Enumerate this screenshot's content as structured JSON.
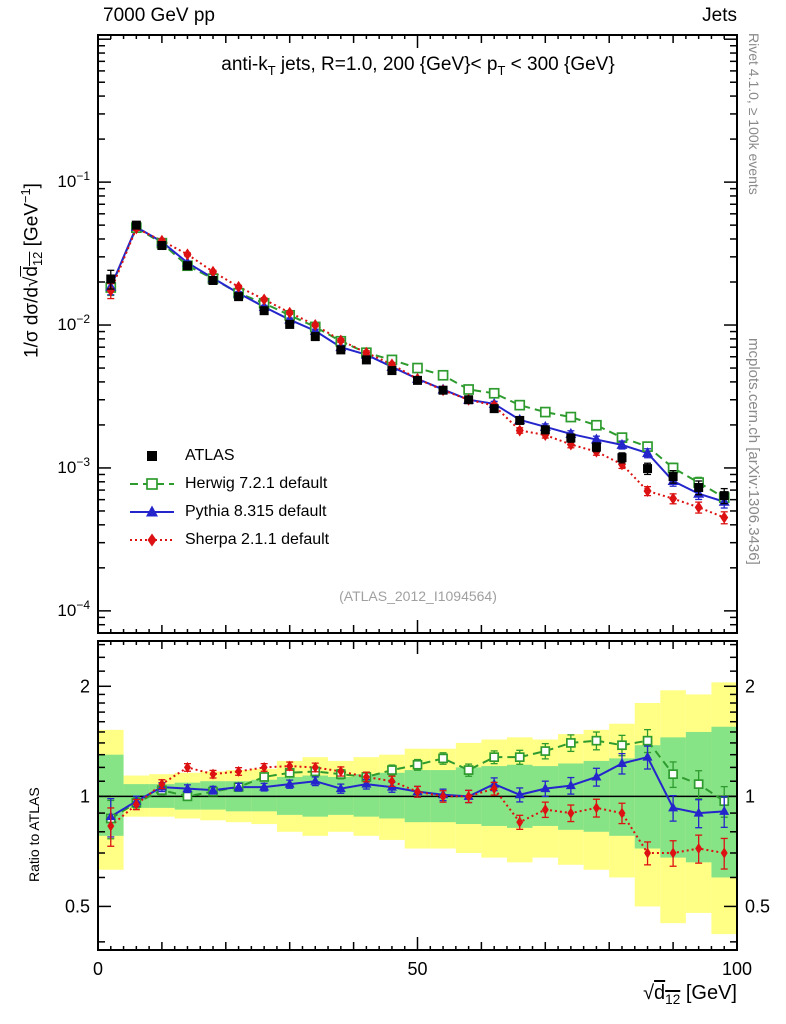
{
  "header": {
    "left": "7000 GeV pp",
    "right": "Jets"
  },
  "panel_title": {
    "p1": "anti-k",
    "s1": "T",
    "p2": " jets, R=1.0, 200 {GeV}< p",
    "s2": "T",
    "p3": " < 300 {GeV}"
  },
  "labels": {
    "y_pre": "1/σ dσ/d√",
    "y_d": "d",
    "y_sub": "12",
    "y_unit_pre": " [GeV",
    "y_sup": "−1",
    "y_unit_post": "]",
    "x_pre": "√",
    "x_d": "d",
    "x_sub": "12",
    "x_post": " [GeV]",
    "ratio_axis": "Ratio to ATLAS",
    "side_right_top": "Rivet 4.1.0, ≥ 100k events",
    "side_right_bottom": "mcplots.cern.ch [arXiv:1306.3436]",
    "watermark": "(ATLAS_2012_I1094564)"
  },
  "chart_data": {
    "type": "line",
    "title": "anti-k_T jets, R=1.0, 200 {GeV}< p_T < 300 {GeV}",
    "xlabel": "sqrt(d12) [GeV]",
    "ylabel": "1/sigma dsigma/d sqrt(d12) [GeV^-1]",
    "ratio_ylabel": "Ratio to ATLAS",
    "xlim": [
      0,
      100
    ],
    "top_ylim": [
      7e-05,
      1.07
    ],
    "ratio_ylim": [
      0.38,
      2.66
    ],
    "x_ticks": [
      0,
      50,
      100
    ],
    "y_tick_exponents": [
      -1,
      -2,
      -3,
      -4
    ],
    "ratio_ticks": [
      0.5,
      1,
      2
    ],
    "ratio_tick_labels": [
      "0.5",
      "1",
      "2"
    ],
    "bin_half_width": 2,
    "x": [
      2,
      6,
      10,
      14,
      18,
      22,
      26,
      30,
      34,
      38,
      42,
      46,
      50,
      54,
      58,
      62,
      66,
      70,
      74,
      78,
      82,
      86,
      90,
      94,
      98
    ],
    "err_frac": [
      0.15,
      0.04,
      0.035,
      0.03,
      0.03,
      0.03,
      0.03,
      0.032,
      0.034,
      0.036,
      0.038,
      0.04,
      0.042,
      0.045,
      0.048,
      0.05,
      0.055,
      0.06,
      0.065,
      0.07,
      0.08,
      0.09,
      0.1,
      0.11,
      0.12
    ],
    "series": [
      {
        "label": "ATLAS",
        "color": "#000000",
        "marker": "square-filled",
        "line": "none",
        "values": [
          0.021,
          0.05,
          0.036,
          0.026,
          0.0205,
          0.0158,
          0.0126,
          0.0101,
          0.0083,
          0.0067,
          0.0057,
          0.0048,
          0.0041,
          0.0035,
          0.003,
          0.0026,
          0.00215,
          0.00185,
          0.00162,
          0.0014,
          0.00118,
          0.00099,
          0.00087,
          0.00073,
          0.00064
        ]
      },
      {
        "label": "Herwig 7.2.1 default",
        "color": "#2e9b2e",
        "marker": "square-open",
        "line": "dashed",
        "values": [
          0.0183,
          0.048,
          0.0374,
          0.026,
          0.0211,
          0.0167,
          0.0142,
          0.0117,
          0.0097,
          0.0077,
          0.0064,
          0.0057,
          0.005,
          0.00445,
          0.00354,
          0.00333,
          0.00275,
          0.00246,
          0.00227,
          0.00199,
          0.00163,
          0.00141,
          0.001,
          0.00079,
          0.00062
        ],
        "ratio": [
          0.87,
          0.96,
          1.04,
          1.0,
          1.03,
          1.06,
          1.13,
          1.16,
          1.17,
          1.15,
          1.13,
          1.18,
          1.22,
          1.27,
          1.18,
          1.28,
          1.28,
          1.33,
          1.4,
          1.42,
          1.38,
          1.42,
          1.15,
          1.08,
          0.97
        ]
      },
      {
        "label": "Pythia 8.315 default",
        "color": "#2525cc",
        "marker": "triangle-filled",
        "line": "solid",
        "values": [
          0.0185,
          0.0485,
          0.0382,
          0.0273,
          0.0213,
          0.0167,
          0.0134,
          0.0109,
          0.0091,
          0.007,
          0.0062,
          0.0051,
          0.0042,
          0.00354,
          0.003,
          0.00281,
          0.00217,
          0.00194,
          0.00173,
          0.00158,
          0.00145,
          0.00127,
          0.00081,
          0.00066,
          0.00058
        ],
        "ratio": [
          0.88,
          0.97,
          1.06,
          1.05,
          1.04,
          1.06,
          1.06,
          1.08,
          1.1,
          1.05,
          1.08,
          1.06,
          1.03,
          1.01,
          1.0,
          1.08,
          1.01,
          1.05,
          1.07,
          1.13,
          1.23,
          1.28,
          0.93,
          0.9,
          0.91
        ]
      },
      {
        "label": "Sherpa 2.1.1 default",
        "color": "#dd1111",
        "marker": "diamond-filled",
        "line": "dotted",
        "values": [
          0.0174,
          0.0475,
          0.0389,
          0.0312,
          0.0236,
          0.0185,
          0.0151,
          0.0122,
          0.01,
          0.0078,
          0.0064,
          0.0053,
          0.0042,
          0.0035,
          0.003,
          0.00273,
          0.00183,
          0.0017,
          0.00146,
          0.0013,
          0.00106,
          0.00069,
          0.00061,
          0.00053,
          0.00045
        ],
        "ratio": [
          0.83,
          0.95,
          1.08,
          1.2,
          1.15,
          1.17,
          1.2,
          1.21,
          1.2,
          1.17,
          1.13,
          1.1,
          1.03,
          1.0,
          1.0,
          1.05,
          0.85,
          0.92,
          0.9,
          0.93,
          0.9,
          0.7,
          0.7,
          0.72,
          0.7
        ]
      }
    ],
    "ratio_bands": {
      "yellow_color": "#ffff85",
      "green_color": "#86e386",
      "yellow_lo": [
        0.63,
        0.88,
        0.88,
        0.87,
        0.86,
        0.85,
        0.84,
        0.8,
        0.78,
        0.8,
        0.78,
        0.76,
        0.72,
        0.72,
        0.7,
        0.68,
        0.66,
        0.68,
        0.65,
        0.63,
        0.6,
        0.5,
        0.45,
        0.48,
        0.42
      ],
      "yellow_hi": [
        1.52,
        1.14,
        1.15,
        1.16,
        1.17,
        1.18,
        1.19,
        1.25,
        1.28,
        1.25,
        1.28,
        1.3,
        1.35,
        1.35,
        1.4,
        1.43,
        1.45,
        1.43,
        1.48,
        1.52,
        1.58,
        1.8,
        1.95,
        1.9,
        2.05
      ],
      "green_lo": [
        0.78,
        0.93,
        0.93,
        0.92,
        0.92,
        0.91,
        0.91,
        0.89,
        0.88,
        0.89,
        0.88,
        0.87,
        0.85,
        0.85,
        0.84,
        0.83,
        0.82,
        0.83,
        0.81,
        0.8,
        0.78,
        0.72,
        0.68,
        0.66,
        0.6
      ],
      "green_hi": [
        1.3,
        1.08,
        1.08,
        1.09,
        1.1,
        1.1,
        1.11,
        1.13,
        1.14,
        1.13,
        1.15,
        1.16,
        1.18,
        1.18,
        1.2,
        1.21,
        1.22,
        1.21,
        1.23,
        1.25,
        1.27,
        1.38,
        1.45,
        1.5,
        1.55
      ]
    },
    "legend_position": "left-middle",
    "grid": false
  }
}
